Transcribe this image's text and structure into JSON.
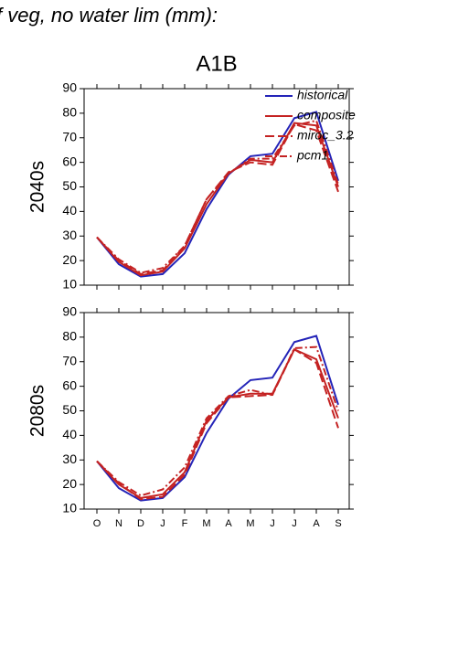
{
  "header": "f veg, no water lim (mm):",
  "chart_data": [
    {
      "type": "line",
      "title": "A1B",
      "y_label": "2040s",
      "ylim": [
        10,
        90
      ],
      "yticks": [
        10,
        20,
        30,
        40,
        50,
        60,
        70,
        80,
        90
      ],
      "legend": "upper right",
      "series": [
        {
          "name": "historical",
          "color": "#2424b8",
          "style": "solid",
          "values": [
            29.5,
            18.5,
            13.5,
            14.5,
            23,
            41,
            55,
            62.5,
            63.5,
            78,
            80.5,
            52.5
          ]
        },
        {
          "name": "composite",
          "color": "#c42222",
          "style": "solid",
          "values": [
            29.5,
            19.5,
            14,
            15.5,
            25,
            43,
            55.5,
            61,
            60,
            76,
            75,
            50
          ]
        },
        {
          "name": "miroc_3.2",
          "color": "#c42222",
          "style": "longdash",
          "values": [
            29.5,
            20,
            14.5,
            16,
            26,
            45,
            56,
            60,
            59,
            75.5,
            73,
            48
          ]
        },
        {
          "name": "pcm1",
          "color": "#c42222",
          "style": "dashdot",
          "values": [
            29.5,
            20.5,
            15,
            17,
            26,
            45,
            55.5,
            61.5,
            61.5,
            75,
            77,
            51
          ]
        }
      ]
    },
    {
      "type": "line",
      "y_label": "2080s",
      "categories": [
        "O",
        "N",
        "D",
        "J",
        "F",
        "M",
        "A",
        "M",
        "J",
        "J",
        "A",
        "S"
      ],
      "ylim": [
        10,
        90
      ],
      "yticks": [
        10,
        20,
        30,
        40,
        50,
        60,
        70,
        80,
        90
      ],
      "series": [
        {
          "color": "#2424b8",
          "style": "solid",
          "values": [
            29.5,
            18.5,
            13.5,
            14.5,
            23,
            41,
            55,
            62.5,
            63.5,
            78,
            80.5,
            52.5
          ]
        },
        {
          "color": "#c42222",
          "style": "solid",
          "values": [
            29.5,
            20,
            14.5,
            16,
            25,
            46,
            55.5,
            57,
            57,
            75,
            71,
            47
          ]
        },
        {
          "color": "#c42222",
          "style": "longdash",
          "values": [
            29.5,
            20.5,
            14,
            15,
            24,
            45,
            55.5,
            56,
            56.5,
            75,
            69.5,
            43
          ]
        },
        {
          "color": "#c42222",
          "style": "dashdot",
          "values": [
            29.5,
            21,
            15.5,
            18,
            27,
            47,
            56,
            58.5,
            56.5,
            75.5,
            76,
            50
          ]
        }
      ]
    }
  ]
}
